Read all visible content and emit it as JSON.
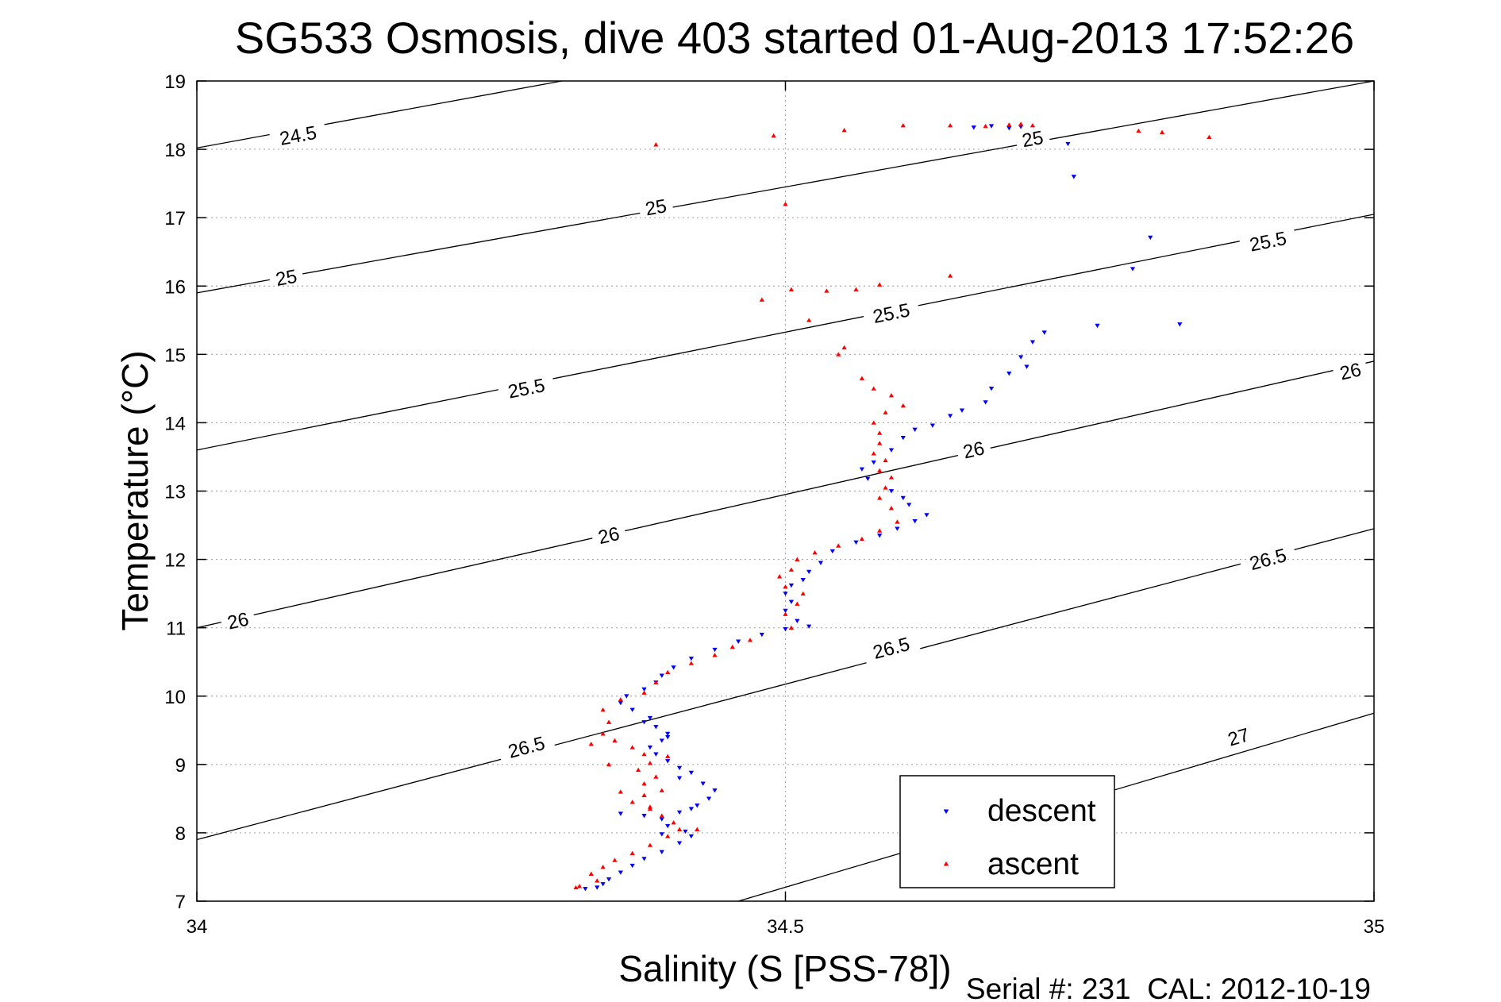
{
  "chart_data": {
    "type": "scatter",
    "title": "SG533 Osmosis, dive 403 started 01-Aug-2013 17:52:26",
    "xlabel": "Salinity (S [PSS-78])",
    "ylabel": "Temperature (°C)",
    "footer": "Serial #: 231  CAL: 2012-10-19",
    "xlim": [
      34,
      35
    ],
    "ylim": [
      7,
      19
    ],
    "xticks": [
      34,
      34.5,
      35
    ],
    "xtick_labels": [
      "34",
      "34.5",
      "35"
    ],
    "yticks": [
      7,
      8,
      9,
      10,
      11,
      12,
      13,
      14,
      15,
      16,
      17,
      18,
      19
    ],
    "ytick_labels": [
      "7",
      "8",
      "9",
      "10",
      "11",
      "12",
      "13",
      "14",
      "15",
      "16",
      "17",
      "18",
      "19"
    ],
    "grid": true,
    "legend": {
      "position": "bottom-right"
    },
    "colors": {
      "descent": "#0000ff",
      "ascent": "#ff0000",
      "contour": "#000000",
      "grid": "#aaaaaa"
    },
    "density_contours": [
      {
        "sigma": "24.5",
        "points": [
          [
            34.0,
            18.02
          ],
          [
            34.31,
            19.0
          ]
        ],
        "labels": [
          {
            "text": "24.5",
            "x": 34.086,
            "y": 18.2
          }
        ]
      },
      {
        "sigma": "25",
        "points": [
          [
            34.0,
            15.9
          ],
          [
            35.0,
            19.0
          ]
        ],
        "labels": [
          {
            "text": "25",
            "x": 34.076,
            "y": 16.12
          },
          {
            "text": "25",
            "x": 34.39,
            "y": 17.15
          },
          {
            "text": "25",
            "x": 34.71,
            "y": 18.15
          }
        ]
      },
      {
        "sigma": "25.5",
        "points": [
          [
            34.0,
            13.6
          ],
          [
            35.0,
            17.05
          ]
        ],
        "labels": [
          {
            "text": "25.5",
            "x": 34.28,
            "y": 14.5
          },
          {
            "text": "25.5",
            "x": 34.59,
            "y": 15.6
          },
          {
            "text": "25.5",
            "x": 34.91,
            "y": 16.65
          }
        ]
      },
      {
        "sigma": "26",
        "points": [
          [
            34.0,
            11.0
          ],
          [
            35.0,
            14.9
          ]
        ],
        "labels": [
          {
            "text": "26",
            "x": 34.035,
            "y": 11.1
          },
          {
            "text": "26",
            "x": 34.35,
            "y": 12.35
          },
          {
            "text": "26",
            "x": 34.66,
            "y": 13.6
          },
          {
            "text": "26",
            "x": 34.98,
            "y": 14.75
          }
        ]
      },
      {
        "sigma": "26.5",
        "points": [
          [
            34.0,
            7.9
          ],
          [
            35.0,
            12.45
          ]
        ],
        "labels": [
          {
            "text": "26.5",
            "x": 34.28,
            "y": 9.25
          },
          {
            "text": "26.5",
            "x": 34.59,
            "y": 10.7
          },
          {
            "text": "26.5",
            "x": 34.91,
            "y": 12.0
          }
        ]
      },
      {
        "sigma": "27",
        "points": [
          [
            34.46,
            7.0
          ],
          [
            35.0,
            9.75
          ]
        ],
        "labels": [
          {
            "text": "27",
            "x": 34.885,
            "y": 9.4
          }
        ]
      }
    ],
    "series": [
      {
        "name": "descent",
        "marker": "triangle-down",
        "points": [
          [
            34.66,
            18.32
          ],
          [
            34.675,
            18.34
          ],
          [
            34.69,
            18.31
          ],
          [
            34.7,
            18.33
          ],
          [
            34.74,
            18.08
          ],
          [
            34.745,
            17.6
          ],
          [
            34.81,
            16.71
          ],
          [
            34.795,
            16.25
          ],
          [
            34.835,
            15.44
          ],
          [
            34.765,
            15.42
          ],
          [
            34.72,
            15.32
          ],
          [
            34.71,
            15.18
          ],
          [
            34.7,
            14.96
          ],
          [
            34.705,
            14.82
          ],
          [
            34.69,
            14.72
          ],
          [
            34.675,
            14.5
          ],
          [
            34.67,
            14.3
          ],
          [
            34.65,
            14.18
          ],
          [
            34.64,
            14.1
          ],
          [
            34.625,
            13.96
          ],
          [
            34.61,
            13.9
          ],
          [
            34.6,
            13.78
          ],
          [
            34.59,
            13.6
          ],
          [
            34.575,
            13.42
          ],
          [
            34.565,
            13.32
          ],
          [
            34.57,
            13.18
          ],
          [
            34.59,
            13.0
          ],
          [
            34.6,
            12.9
          ],
          [
            34.605,
            12.8
          ],
          [
            34.62,
            12.65
          ],
          [
            34.61,
            12.56
          ],
          [
            34.595,
            12.45
          ],
          [
            34.58,
            12.35
          ],
          [
            34.56,
            12.25
          ],
          [
            34.54,
            12.12
          ],
          [
            34.53,
            11.95
          ],
          [
            34.52,
            11.82
          ],
          [
            34.515,
            11.7
          ],
          [
            34.505,
            11.62
          ],
          [
            34.5,
            11.5
          ],
          [
            34.505,
            11.38
          ],
          [
            34.5,
            11.25
          ],
          [
            34.51,
            11.1
          ],
          [
            34.52,
            11.02
          ],
          [
            34.5,
            10.98
          ],
          [
            34.48,
            10.9
          ],
          [
            34.46,
            10.8
          ],
          [
            34.44,
            10.68
          ],
          [
            34.42,
            10.55
          ],
          [
            34.405,
            10.42
          ],
          [
            34.395,
            10.3
          ],
          [
            34.39,
            10.2
          ],
          [
            34.38,
            10.1
          ],
          [
            34.365,
            10.0
          ],
          [
            34.36,
            9.9
          ],
          [
            34.37,
            9.8
          ],
          [
            34.385,
            9.68
          ],
          [
            34.39,
            9.55
          ],
          [
            34.4,
            9.45
          ],
          [
            34.395,
            9.35
          ],
          [
            34.385,
            9.25
          ],
          [
            34.39,
            9.15
          ],
          [
            34.4,
            9.05
          ],
          [
            34.41,
            8.95
          ],
          [
            34.42,
            8.88
          ],
          [
            34.41,
            8.8
          ],
          [
            34.43,
            8.72
          ],
          [
            34.44,
            8.62
          ],
          [
            34.435,
            8.5
          ],
          [
            34.425,
            8.4
          ],
          [
            34.41,
            8.3
          ],
          [
            34.395,
            8.2
          ],
          [
            34.4,
            8.1
          ],
          [
            34.415,
            8.02
          ],
          [
            34.42,
            7.95
          ],
          [
            34.41,
            7.85
          ],
          [
            34.395,
            7.72
          ],
          [
            34.38,
            7.62
          ],
          [
            34.37,
            7.52
          ],
          [
            34.36,
            7.42
          ],
          [
            34.35,
            7.32
          ],
          [
            34.345,
            7.25
          ],
          [
            34.34,
            7.2
          ],
          [
            34.33,
            7.18
          ],
          [
            34.38,
            9.62
          ],
          [
            34.4,
            9.4
          ],
          [
            34.42,
            8.35
          ],
          [
            34.38,
            8.25
          ],
          [
            34.36,
            8.28
          ],
          [
            34.395,
            7.98
          ]
        ]
      },
      {
        "name": "ascent",
        "marker": "triangle-up",
        "points": [
          [
            34.39,
            18.07
          ],
          [
            34.49,
            18.2
          ],
          [
            34.55,
            18.28
          ],
          [
            34.6,
            18.35
          ],
          [
            34.64,
            18.35
          ],
          [
            34.67,
            18.34
          ],
          [
            34.69,
            18.36
          ],
          [
            34.7,
            18.37
          ],
          [
            34.71,
            18.35
          ],
          [
            34.8,
            18.27
          ],
          [
            34.82,
            18.25
          ],
          [
            34.86,
            18.18
          ],
          [
            34.5,
            17.2
          ],
          [
            34.64,
            16.15
          ],
          [
            34.58,
            16.02
          ],
          [
            34.505,
            15.95
          ],
          [
            34.535,
            15.93
          ],
          [
            34.56,
            15.95
          ],
          [
            34.48,
            15.8
          ],
          [
            34.52,
            15.5
          ],
          [
            34.55,
            15.1
          ],
          [
            34.545,
            15.0
          ],
          [
            34.565,
            14.65
          ],
          [
            34.575,
            14.5
          ],
          [
            34.59,
            14.4
          ],
          [
            34.6,
            14.25
          ],
          [
            34.585,
            14.15
          ],
          [
            34.575,
            14.0
          ],
          [
            34.58,
            13.85
          ],
          [
            34.58,
            13.7
          ],
          [
            34.575,
            13.55
          ],
          [
            34.585,
            13.45
          ],
          [
            34.58,
            13.3
          ],
          [
            34.59,
            13.2
          ],
          [
            34.585,
            13.05
          ],
          [
            34.58,
            12.9
          ],
          [
            34.59,
            12.75
          ],
          [
            34.595,
            12.55
          ],
          [
            34.58,
            12.42
          ],
          [
            34.565,
            12.3
          ],
          [
            34.545,
            12.2
          ],
          [
            34.525,
            12.1
          ],
          [
            34.51,
            12.0
          ],
          [
            34.505,
            11.85
          ],
          [
            34.495,
            11.75
          ],
          [
            34.5,
            11.6
          ],
          [
            34.515,
            11.5
          ],
          [
            34.51,
            11.35
          ],
          [
            34.5,
            11.2
          ],
          [
            34.505,
            11.0
          ],
          [
            34.47,
            10.82
          ],
          [
            34.455,
            10.72
          ],
          [
            34.44,
            10.6
          ],
          [
            34.42,
            10.48
          ],
          [
            34.4,
            10.35
          ],
          [
            34.39,
            10.2
          ],
          [
            34.38,
            10.05
          ],
          [
            34.36,
            9.95
          ],
          [
            34.345,
            9.8
          ],
          [
            34.35,
            9.62
          ],
          [
            34.345,
            9.45
          ],
          [
            34.355,
            9.35
          ],
          [
            34.37,
            9.25
          ],
          [
            34.38,
            9.15
          ],
          [
            34.4,
            9.12
          ],
          [
            34.385,
            9.02
          ],
          [
            34.375,
            8.92
          ],
          [
            34.39,
            8.82
          ],
          [
            34.38,
            8.72
          ],
          [
            34.395,
            8.62
          ],
          [
            34.38,
            8.55
          ],
          [
            34.37,
            8.45
          ],
          [
            34.385,
            8.35
          ],
          [
            34.395,
            8.25
          ],
          [
            34.405,
            8.15
          ],
          [
            34.41,
            8.05
          ],
          [
            34.4,
            7.95
          ],
          [
            34.385,
            7.82
          ],
          [
            34.37,
            7.7
          ],
          [
            34.355,
            7.6
          ],
          [
            34.345,
            7.5
          ],
          [
            34.335,
            7.4
          ],
          [
            34.34,
            7.3
          ],
          [
            34.325,
            7.22
          ],
          [
            34.322,
            7.2
          ],
          [
            34.335,
            9.3
          ],
          [
            34.35,
            9.0
          ],
          [
            34.36,
            8.6
          ],
          [
            34.385,
            8.38
          ],
          [
            34.425,
            8.05
          ]
        ]
      }
    ]
  }
}
